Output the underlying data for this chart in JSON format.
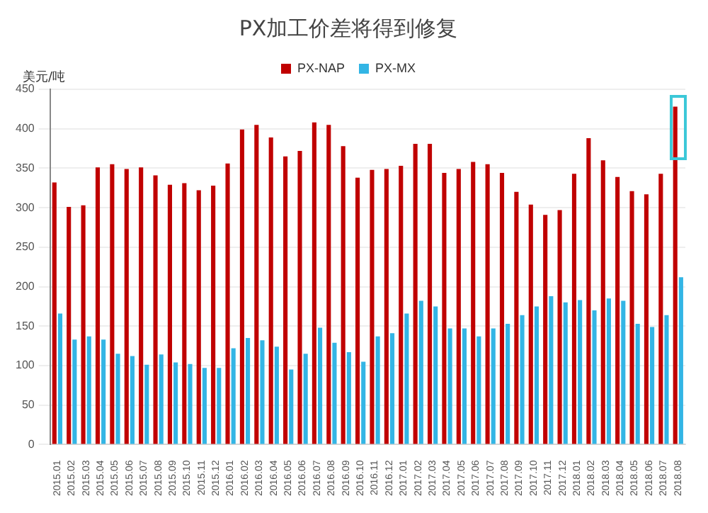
{
  "chart_data": {
    "type": "bar",
    "title": "PX加工价差将得到修复",
    "ylabel": "美元/吨",
    "categories": [
      "2015.01",
      "2015.02",
      "2015.03",
      "2015.04",
      "2015.05",
      "2015.06",
      "2015.07",
      "2015.08",
      "2015.09",
      "2015.10",
      "2015.11",
      "2015.12",
      "2016.01",
      "2016.02",
      "2016.03",
      "2016.04",
      "2016.05",
      "2016.06",
      "2016.07",
      "2016.08",
      "2016.09",
      "2016.10",
      "2016.11",
      "2016.12",
      "2017.01",
      "2017.02",
      "2017.03",
      "2017.04",
      "2017.05",
      "2017.06",
      "2017.07",
      "2017.08",
      "2017.09",
      "2017.10",
      "2017.11",
      "2017.12",
      "2018.01",
      "2018.02",
      "2018.03",
      "2018.04",
      "2018.05",
      "2018.06",
      "2018.07",
      "2018.08"
    ],
    "series": [
      {
        "name": "PX-NAP",
        "color": "#c00000",
        "values": [
          332,
          301,
          303,
          351,
          355,
          349,
          351,
          341,
          329,
          331,
          322,
          328,
          356,
          399,
          405,
          389,
          365,
          372,
          408,
          405,
          378,
          338,
          348,
          349,
          353,
          381,
          381,
          344,
          349,
          358,
          355,
          344,
          320,
          304,
          291,
          297,
          343,
          388,
          360,
          339,
          321,
          317,
          343,
          428
        ]
      },
      {
        "name": "PX-MX",
        "color": "#33b5e5",
        "values": [
          166,
          133,
          137,
          133,
          115,
          112,
          101,
          114,
          104,
          102,
          97,
          97,
          122,
          135,
          132,
          124,
          95,
          115,
          148,
          129,
          117,
          105,
          137,
          141,
          166,
          182,
          175,
          147,
          147,
          137,
          147,
          153,
          164,
          175,
          188,
          180,
          183,
          170,
          185,
          182,
          153,
          149,
          164,
          212
        ]
      }
    ],
    "ylim": [
      0,
      450
    ],
    "yticks": [
      0,
      50,
      100,
      150,
      200,
      250,
      300,
      350,
      400,
      450
    ],
    "grid": "y",
    "legend": "top"
  }
}
